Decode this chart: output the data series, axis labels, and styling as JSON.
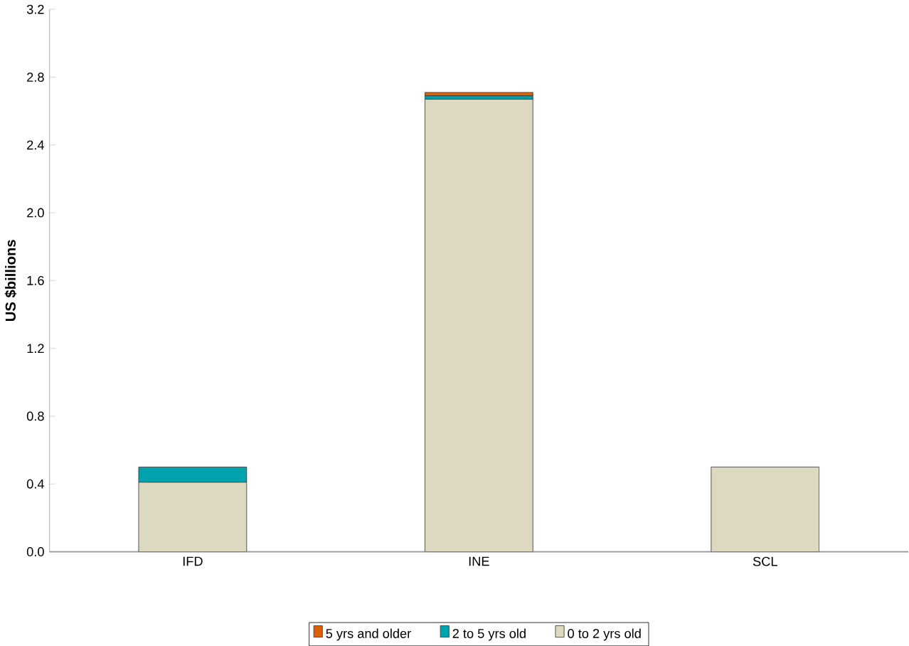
{
  "chart_data": {
    "type": "bar",
    "stacked": true,
    "ylabel": "US $billions",
    "categories": [
      "IFD",
      "INE",
      "SCL"
    ],
    "series": [
      {
        "name": "0 to 2 yrs old",
        "color": "#ddd8c0",
        "values": [
          0.41,
          2.67,
          0.5
        ]
      },
      {
        "name": "2 to 5 yrs old",
        "color": "#00a3ad",
        "values": [
          0.09,
          0.02,
          0
        ]
      },
      {
        "name": "5 yrs and older",
        "color": "#e0600a",
        "values": [
          0,
          0.02,
          0
        ]
      }
    ],
    "ylim": [
      0,
      3.2
    ],
    "yticks": [
      "0.0",
      0.4,
      0.8,
      1.2,
      1.6,
      "2.0",
      2.4,
      2.8,
      3.2
    ],
    "legend": "bottom",
    "grid": false
  }
}
